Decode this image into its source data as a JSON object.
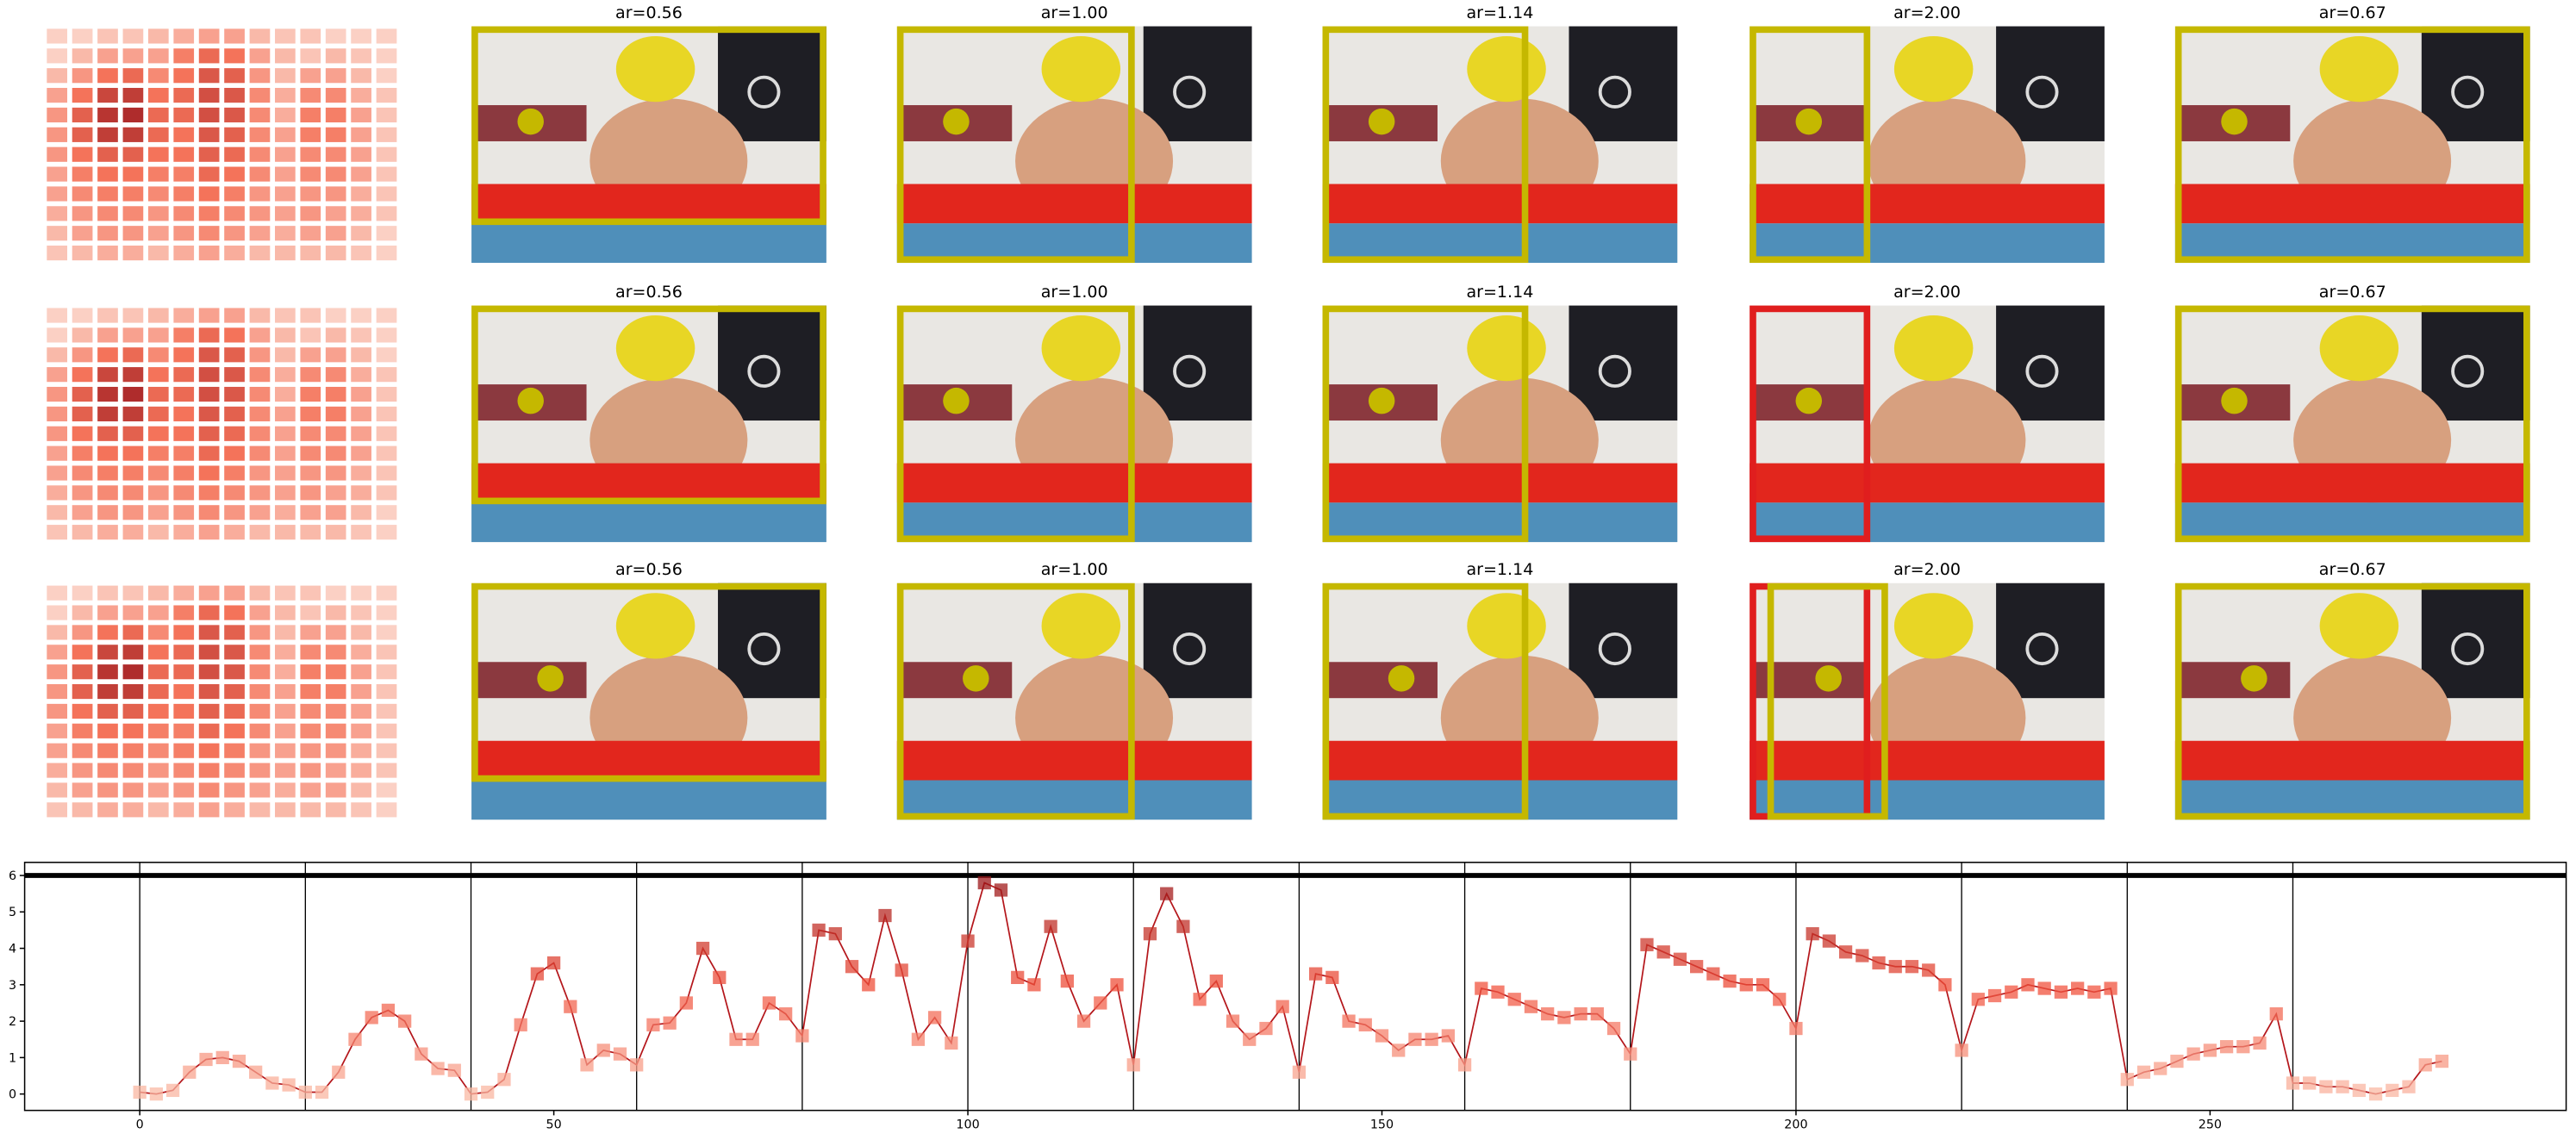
{
  "panels": [
    [
      {
        "title": "ar=0.56",
        "box_colors": [
          "#c5b800"
        ]
      },
      {
        "title": "ar=1.00",
        "box_colors": [
          "#c5b800"
        ]
      },
      {
        "title": "ar=1.14",
        "box_colors": [
          "#c5b800"
        ]
      },
      {
        "title": "ar=2.00",
        "box_colors": [
          "#c5b800"
        ]
      },
      {
        "title": "ar=0.67",
        "box_colors": [
          "#c5b800"
        ]
      }
    ],
    [
      {
        "title": "ar=0.56",
        "box_colors": [
          "#c5b800"
        ]
      },
      {
        "title": "ar=1.00",
        "box_colors": [
          "#c5b800"
        ]
      },
      {
        "title": "ar=1.14",
        "box_colors": [
          "#c5b800"
        ]
      },
      {
        "title": "ar=2.00",
        "box_colors": [
          "#e01e1e"
        ]
      },
      {
        "title": "ar=0.67",
        "box_colors": [
          "#c5b800"
        ]
      }
    ],
    [
      {
        "title": "ar=0.56",
        "box_colors": [
          "#c5b800"
        ]
      },
      {
        "title": "ar=1.00",
        "box_colors": [
          "#c5b800"
        ]
      },
      {
        "title": "ar=1.14",
        "box_colors": [
          "#c5b800"
        ]
      },
      {
        "title": "ar=2.00",
        "box_colors": [
          "#e01e1e",
          "#c5b800"
        ]
      },
      {
        "title": "ar=0.67",
        "box_colors": [
          "#c5b800"
        ]
      }
    ]
  ],
  "heatmap": {
    "colors": [
      "#fde7de",
      "#f4735a",
      "#9e1a20"
    ],
    "values": [
      [
        0.1,
        0.1,
        0.15,
        0.15,
        0.2,
        0.25,
        0.3,
        0.3,
        0.2,
        0.15,
        0.15,
        0.1,
        0.1,
        0.1
      ],
      [
        0.1,
        0.2,
        0.3,
        0.3,
        0.3,
        0.45,
        0.55,
        0.5,
        0.3,
        0.2,
        0.15,
        0.2,
        0.15,
        0.1
      ],
      [
        0.2,
        0.35,
        0.5,
        0.55,
        0.4,
        0.5,
        0.65,
        0.6,
        0.35,
        0.2,
        0.3,
        0.3,
        0.2,
        0.1
      ],
      [
        0.3,
        0.5,
        0.75,
        0.8,
        0.5,
        0.55,
        0.7,
        0.65,
        0.4,
        0.25,
        0.4,
        0.4,
        0.25,
        0.15
      ],
      [
        0.35,
        0.6,
        0.85,
        0.9,
        0.55,
        0.55,
        0.7,
        0.65,
        0.4,
        0.25,
        0.45,
        0.45,
        0.3,
        0.15
      ],
      [
        0.35,
        0.6,
        0.8,
        0.8,
        0.55,
        0.5,
        0.65,
        0.6,
        0.4,
        0.3,
        0.45,
        0.45,
        0.3,
        0.15
      ],
      [
        0.35,
        0.5,
        0.6,
        0.6,
        0.5,
        0.5,
        0.6,
        0.55,
        0.4,
        0.3,
        0.4,
        0.4,
        0.3,
        0.15
      ],
      [
        0.3,
        0.45,
        0.5,
        0.5,
        0.45,
        0.45,
        0.55,
        0.5,
        0.4,
        0.3,
        0.4,
        0.4,
        0.3,
        0.15
      ],
      [
        0.3,
        0.4,
        0.45,
        0.45,
        0.4,
        0.45,
        0.5,
        0.45,
        0.35,
        0.3,
        0.35,
        0.35,
        0.25,
        0.15
      ],
      [
        0.25,
        0.35,
        0.4,
        0.4,
        0.35,
        0.4,
        0.45,
        0.4,
        0.35,
        0.3,
        0.35,
        0.3,
        0.25,
        0.15
      ],
      [
        0.2,
        0.3,
        0.35,
        0.35,
        0.3,
        0.35,
        0.4,
        0.35,
        0.3,
        0.25,
        0.3,
        0.3,
        0.2,
        0.1
      ],
      [
        0.15,
        0.2,
        0.25,
        0.25,
        0.2,
        0.25,
        0.3,
        0.25,
        0.2,
        0.2,
        0.2,
        0.2,
        0.15,
        0.1
      ]
    ]
  },
  "chart_data": {
    "type": "line",
    "line_color": "#b4161b",
    "marker_colors": [
      "#fcc9b4",
      "#f0513c",
      "#8c0c12"
    ],
    "x": [
      0,
      2,
      4,
      6,
      8,
      10,
      12,
      14,
      16,
      18,
      20,
      22,
      24,
      26,
      28,
      30,
      32,
      34,
      36,
      38,
      40,
      42,
      44,
      46,
      48,
      50,
      52,
      54,
      56,
      58,
      60,
      62,
      64,
      66,
      68,
      70,
      72,
      74,
      76,
      78,
      80,
      82,
      84,
      86,
      88,
      90,
      92,
      94,
      96,
      98,
      100,
      102,
      104,
      106,
      108,
      110,
      112,
      114,
      116,
      118,
      120,
      122,
      124,
      126,
      128,
      130,
      132,
      134,
      136,
      138,
      140,
      142,
      144,
      146,
      148,
      150,
      152,
      154,
      156,
      158,
      160,
      162,
      164,
      166,
      168,
      170,
      172,
      174,
      176,
      178,
      180,
      182,
      184,
      186,
      188,
      190,
      192,
      194,
      196,
      198,
      200,
      202,
      204,
      206,
      208,
      210,
      212,
      214,
      216,
      218,
      220,
      222,
      224,
      226,
      228,
      230,
      232,
      234,
      236,
      238,
      240,
      242,
      244,
      246,
      248,
      250,
      252,
      254,
      256,
      258,
      260,
      262,
      264,
      266,
      268,
      270,
      272,
      274,
      276,
      278
    ],
    "values": [
      0.05,
      0.0,
      0.1,
      0.6,
      0.95,
      1.0,
      0.9,
      0.6,
      0.3,
      0.25,
      0.05,
      0.05,
      0.6,
      1.5,
      2.1,
      2.3,
      2.0,
      1.1,
      0.7,
      0.65,
      0.0,
      0.05,
      0.4,
      1.9,
      3.3,
      3.6,
      2.4,
      0.8,
      1.2,
      1.1,
      0.8,
      1.9,
      1.95,
      2.5,
      4.0,
      3.2,
      1.5,
      1.5,
      2.5,
      2.2,
      1.6,
      4.5,
      4.4,
      3.5,
      3.0,
      4.9,
      3.4,
      1.5,
      2.1,
      1.4,
      4.2,
      5.8,
      5.6,
      3.2,
      3.0,
      4.6,
      3.1,
      2.0,
      2.5,
      3.0,
      0.8,
      4.4,
      5.5,
      4.6,
      2.6,
      3.1,
      2.0,
      1.5,
      1.8,
      2.4,
      0.6,
      3.3,
      3.2,
      2.0,
      1.9,
      1.6,
      1.2,
      1.5,
      1.5,
      1.6,
      0.8,
      2.9,
      2.8,
      2.6,
      2.4,
      2.2,
      2.1,
      2.2,
      2.2,
      1.8,
      1.1,
      4.1,
      3.9,
      3.7,
      3.5,
      3.3,
      3.1,
      3.0,
      3.0,
      2.6,
      1.8,
      4.4,
      4.2,
      3.9,
      3.8,
      3.6,
      3.5,
      3.5,
      3.4,
      3.0,
      1.2,
      2.6,
      2.7,
      2.8,
      3.0,
      2.9,
      2.8,
      2.9,
      2.8,
      2.9,
      0.4,
      0.6,
      0.7,
      0.9,
      1.1,
      1.2,
      1.3,
      1.3,
      1.4,
      2.2,
      0.3,
      0.3,
      0.2,
      0.2,
      0.1,
      0.0,
      0.1,
      0.2,
      0.8,
      0.9
    ],
    "vlines": [
      0,
      20,
      40,
      60,
      80,
      100,
      120,
      140,
      160,
      180,
      200,
      220,
      240,
      260
    ],
    "hline": 6,
    "xlim": [
      -13.9,
      293
    ],
    "ylim": [
      -0.45,
      6.36
    ],
    "xticks": [
      0,
      50,
      100,
      150,
      200,
      250
    ],
    "yticks": [
      0,
      1,
      2,
      3,
      4,
      5,
      6
    ]
  }
}
